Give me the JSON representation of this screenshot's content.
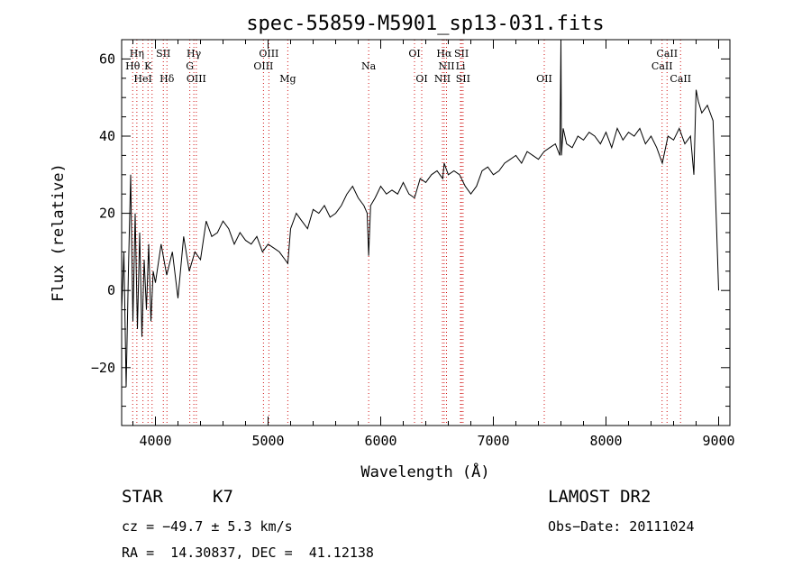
{
  "chart_data": {
    "type": "line",
    "title": "spec-55859-M5901_sp13-031.fits",
    "xlabel": "Wavelength (Å)",
    "ylabel": "Flux (relative)",
    "xlim": [
      3700,
      9100
    ],
    "ylim": [
      -35,
      65
    ],
    "xticks": [
      4000,
      5000,
      6000,
      7000,
      8000,
      9000
    ],
    "yticks": [
      -20,
      0,
      20,
      40,
      60
    ],
    "ytick_labels": [
      "−20",
      "0",
      "20",
      "40",
      "60"
    ],
    "series": [
      {
        "x": [
          3700,
          3720,
          3740,
          3760,
          3780,
          3800,
          3820,
          3840,
          3860,
          3880,
          3900,
          3920,
          3940,
          3960,
          3980,
          4000,
          4050,
          4100,
          4150,
          4200,
          4250,
          4300,
          4350,
          4400,
          4450,
          4500,
          4550,
          4600,
          4650,
          4700,
          4750,
          4800,
          4850,
          4900,
          4950,
          5000,
          5050,
          5100,
          5150,
          5175,
          5200,
          5250,
          5300,
          5350,
          5400,
          5450,
          5500,
          5550,
          5600,
          5650,
          5700,
          5750,
          5800,
          5850,
          5880,
          5893,
          5910,
          5950,
          6000,
          6050,
          6100,
          6150,
          6200,
          6250,
          6300,
          6350,
          6400,
          6450,
          6500,
          6550,
          6563,
          6600,
          6650,
          6700,
          6750,
          6800,
          6850,
          6900,
          6950,
          7000,
          7050,
          7100,
          7150,
          7200,
          7250,
          7300,
          7350,
          7400,
          7450,
          7500,
          7550,
          7590,
          7600,
          7605,
          7620,
          7650,
          7700,
          7750,
          7800,
          7850,
          7900,
          7950,
          8000,
          8050,
          8100,
          8150,
          8200,
          8250,
          8300,
          8350,
          8400,
          8450,
          8500,
          8550,
          8600,
          8650,
          8700,
          8750,
          8780,
          8800,
          8820,
          8850,
          8900,
          8950,
          9000
        ],
        "y": [
          -5,
          10,
          -25,
          5,
          30,
          -8,
          20,
          -10,
          15,
          -12,
          8,
          -5,
          12,
          -8,
          5,
          2,
          12,
          4,
          10,
          -2,
          14,
          5,
          10,
          8,
          18,
          14,
          15,
          18,
          16,
          12,
          15,
          13,
          12,
          14,
          10,
          12,
          11,
          10,
          8,
          7,
          16,
          20,
          18,
          16,
          21,
          20,
          22,
          19,
          20,
          22,
          25,
          27,
          24,
          22,
          20,
          9,
          22,
          24,
          27,
          25,
          26,
          25,
          28,
          25,
          24,
          29,
          28,
          30,
          31,
          29,
          33,
          30,
          31,
          30,
          27,
          25,
          27,
          31,
          32,
          30,
          31,
          33,
          34,
          35,
          33,
          36,
          35,
          34,
          36,
          37,
          38,
          35,
          65,
          35,
          42,
          38,
          37,
          40,
          39,
          41,
          40,
          38,
          41,
          37,
          42,
          39,
          41,
          40,
          42,
          38,
          40,
          37,
          33,
          40,
          39,
          42,
          38,
          40,
          30,
          52,
          49,
          46,
          48,
          44,
          0
        ],
        "color": "#000000"
      }
    ],
    "line_markers": {
      "color": "#d01010",
      "lines": [
        {
          "wave": 3798
        },
        {
          "wave": 3835
        },
        {
          "wave": 3889
        },
        {
          "wave": 3934
        },
        {
          "wave": 3970
        },
        {
          "wave": 4070
        },
        {
          "wave": 4102
        },
        {
          "wave": 4305
        },
        {
          "wave": 4341
        },
        {
          "wave": 4363
        },
        {
          "wave": 4959
        },
        {
          "wave": 5007
        },
        {
          "wave": 5175
        },
        {
          "wave": 5893
        },
        {
          "wave": 6300
        },
        {
          "wave": 6364
        },
        {
          "wave": 6548
        },
        {
          "wave": 6563
        },
        {
          "wave": 6584
        },
        {
          "wave": 6708
        },
        {
          "wave": 6717
        },
        {
          "wave": 6731
        },
        {
          "wave": 7452
        },
        {
          "wave": 8498
        },
        {
          "wave": 8542
        },
        {
          "wave": 8662
        }
      ],
      "labels": [
        {
          "text": "Hη",
          "wave": 3835,
          "row": 0
        },
        {
          "text": "Hθ",
          "wave": 3798,
          "row": 1
        },
        {
          "text": "K",
          "wave": 3934,
          "row": 1
        },
        {
          "text": "HeI",
          "wave": 3889,
          "row": 2
        },
        {
          "text": "SII",
          "wave": 4070,
          "row": 0
        },
        {
          "text": "Hδ",
          "wave": 4102,
          "row": 2
        },
        {
          "text": "Hγ",
          "wave": 4341,
          "row": 0
        },
        {
          "text": "G",
          "wave": 4305,
          "row": 1
        },
        {
          "text": "OIII",
          "wave": 4363,
          "row": 2
        },
        {
          "text": "OIII",
          "wave": 5007,
          "row": 0
        },
        {
          "text": "OIII",
          "wave": 4959,
          "row": 1
        },
        {
          "text": "Mg",
          "wave": 5175,
          "row": 2
        },
        {
          "text": "Na",
          "wave": 5893,
          "row": 1
        },
        {
          "text": "OI",
          "wave": 6300,
          "row": 0
        },
        {
          "text": "OI",
          "wave": 6364,
          "row": 2
        },
        {
          "text": "Hα",
          "wave": 6563,
          "row": 0
        },
        {
          "text": "SII",
          "wave": 6717,
          "row": 0
        },
        {
          "text": "NII",
          "wave": 6584,
          "row": 1
        },
        {
          "text": "Li",
          "wave": 6708,
          "row": 1
        },
        {
          "text": "NII",
          "wave": 6548,
          "row": 2
        },
        {
          "text": "SII",
          "wave": 6731,
          "row": 2
        },
        {
          "text": "OII",
          "wave": 7452,
          "row": 2
        },
        {
          "text": "CaII",
          "wave": 8542,
          "row": 0
        },
        {
          "text": "CaII",
          "wave": 8498,
          "row": 1
        },
        {
          "text": "CaII",
          "wave": 8662,
          "row": 2
        }
      ]
    }
  },
  "info": {
    "object_class": "STAR",
    "subclass": "K7",
    "survey": "LAMOST DR2",
    "redshift_line": "cz = −49.7 ± 5.3 km/s",
    "obs_date_line": "Obs−Date: 20111024",
    "coords_line": "RA =  14.30837, DEC =  41.12138"
  }
}
